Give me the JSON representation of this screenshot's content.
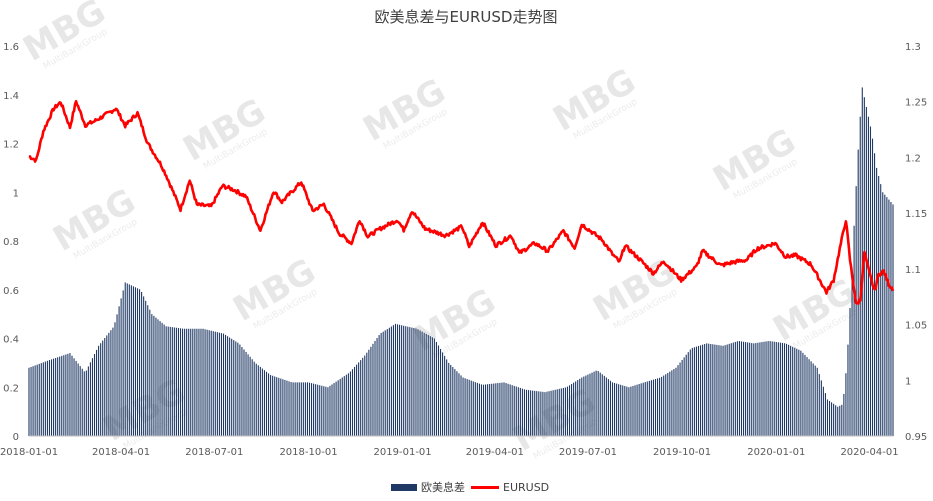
{
  "chart_data": {
    "type": "bar+line",
    "title": "欧美息差与EURUSD走势图",
    "watermark": "MBG",
    "watermark_sub": "MultiBankGroup",
    "x_tick_labels": [
      "2018-01-01",
      "2018-04-01",
      "2018-07-01",
      "2018-10-01",
      "2019-01-01",
      "2019-04-01",
      "2019-07-01",
      "2019-10-01",
      "2020-01-01",
      "2020-04-01"
    ],
    "x_range": [
      "2018-01-01",
      "2020-04-24"
    ],
    "y_left": {
      "min": 0,
      "max": 1.6,
      "ticks": [
        "0",
        "0.2",
        "0.4",
        "0.6",
        "0.8",
        "1",
        "1.2",
        "1.4",
        "1.6"
      ]
    },
    "y_right": {
      "min": 0.95,
      "max": 1.3,
      "ticks": [
        "0.95",
        "1",
        "1.05",
        "1.1",
        "1.15",
        "1.2",
        "1.25",
        "1.3"
      ]
    },
    "grid": false,
    "legend_position": "bottom",
    "series": [
      {
        "name": "欧美息差",
        "kind": "bar",
        "axis": "left",
        "color": "#1f3864",
        "anchors": [
          [
            "2018-01-01",
            0.28
          ],
          [
            "2018-01-20",
            0.31
          ],
          [
            "2018-02-10",
            0.34
          ],
          [
            "2018-02-25",
            0.26
          ],
          [
            "2018-03-10",
            0.37
          ],
          [
            "2018-03-25",
            0.45
          ],
          [
            "2018-04-05",
            0.63
          ],
          [
            "2018-04-20",
            0.6
          ],
          [
            "2018-05-01",
            0.5
          ],
          [
            "2018-05-15",
            0.45
          ],
          [
            "2018-06-01",
            0.44
          ],
          [
            "2018-06-20",
            0.44
          ],
          [
            "2018-07-10",
            0.42
          ],
          [
            "2018-07-25",
            0.38
          ],
          [
            "2018-08-10",
            0.3
          ],
          [
            "2018-08-25",
            0.25
          ],
          [
            "2018-09-15",
            0.22
          ],
          [
            "2018-10-01",
            0.22
          ],
          [
            "2018-10-20",
            0.2
          ],
          [
            "2018-11-10",
            0.26
          ],
          [
            "2018-11-25",
            0.33
          ],
          [
            "2018-12-10",
            0.42
          ],
          [
            "2018-12-25",
            0.46
          ],
          [
            "2019-01-15",
            0.44
          ],
          [
            "2019-02-01",
            0.4
          ],
          [
            "2019-02-15",
            0.3
          ],
          [
            "2019-03-01",
            0.24
          ],
          [
            "2019-03-20",
            0.21
          ],
          [
            "2019-04-10",
            0.22
          ],
          [
            "2019-05-01",
            0.19
          ],
          [
            "2019-05-20",
            0.18
          ],
          [
            "2019-06-10",
            0.2
          ],
          [
            "2019-06-25",
            0.24
          ],
          [
            "2019-07-10",
            0.27
          ],
          [
            "2019-07-25",
            0.22
          ],
          [
            "2019-08-10",
            0.2
          ],
          [
            "2019-08-25",
            0.22
          ],
          [
            "2019-09-10",
            0.24
          ],
          [
            "2019-09-25",
            0.28
          ],
          [
            "2019-10-10",
            0.36
          ],
          [
            "2019-10-25",
            0.38
          ],
          [
            "2019-11-10",
            0.37
          ],
          [
            "2019-11-25",
            0.39
          ],
          [
            "2019-12-10",
            0.38
          ],
          [
            "2019-12-25",
            0.39
          ],
          [
            "2020-01-10",
            0.38
          ],
          [
            "2020-01-25",
            0.35
          ],
          [
            "2020-02-10",
            0.28
          ],
          [
            "2020-02-20",
            0.15
          ],
          [
            "2020-03-01",
            0.12
          ],
          [
            "2020-03-06",
            0.13
          ],
          [
            "2020-03-10",
            0.3
          ],
          [
            "2020-03-14",
            0.6
          ],
          [
            "2020-03-18",
            0.95
          ],
          [
            "2020-03-22",
            1.25
          ],
          [
            "2020-03-25",
            1.43
          ],
          [
            "2020-03-29",
            1.35
          ],
          [
            "2020-04-03",
            1.25
          ],
          [
            "2020-04-08",
            1.1
          ],
          [
            "2020-04-14",
            1.0
          ],
          [
            "2020-04-24",
            0.95
          ]
        ]
      },
      {
        "name": "EURUSD",
        "kind": "line",
        "axis": "right",
        "color": "#ff0000",
        "anchors": [
          [
            "2018-01-01",
            1.2012
          ],
          [
            "2018-01-08",
            1.1972
          ],
          [
            "2018-01-15",
            1.2236
          ],
          [
            "2018-01-25",
            1.2436
          ],
          [
            "2018-02-01",
            1.2497
          ],
          [
            "2018-02-10",
            1.227
          ],
          [
            "2018-02-16",
            1.2505
          ],
          [
            "2018-02-25",
            1.229
          ],
          [
            "2018-03-05",
            1.232
          ],
          [
            "2018-03-20",
            1.24
          ],
          [
            "2018-03-27",
            1.244
          ],
          [
            "2018-04-05",
            1.2285
          ],
          [
            "2018-04-17",
            1.2398
          ],
          [
            "2018-04-27",
            1.2127
          ],
          [
            "2018-05-10",
            1.1935
          ],
          [
            "2018-05-15",
            1.184
          ],
          [
            "2018-05-29",
            1.1535
          ],
          [
            "2018-06-07",
            1.1795
          ],
          [
            "2018-06-14",
            1.1575
          ],
          [
            "2018-06-28",
            1.156
          ],
          [
            "2018-07-09",
            1.1745
          ],
          [
            "2018-07-20",
            1.171
          ],
          [
            "2018-08-01",
            1.165
          ],
          [
            "2018-08-15",
            1.1345
          ],
          [
            "2018-08-28",
            1.17
          ],
          [
            "2018-09-05",
            1.16
          ],
          [
            "2018-09-24",
            1.178
          ],
          [
            "2018-10-05",
            1.152
          ],
          [
            "2018-10-16",
            1.158
          ],
          [
            "2018-10-31",
            1.132
          ],
          [
            "2018-11-12",
            1.123
          ],
          [
            "2018-11-20",
            1.144
          ],
          [
            "2018-11-28",
            1.129
          ],
          [
            "2018-12-10",
            1.136
          ],
          [
            "2018-12-27",
            1.144
          ],
          [
            "2019-01-02",
            1.135
          ],
          [
            "2019-01-10",
            1.152
          ],
          [
            "2019-01-23",
            1.136
          ],
          [
            "2019-02-12",
            1.13
          ],
          [
            "2019-02-28",
            1.138
          ],
          [
            "2019-03-07",
            1.12
          ],
          [
            "2019-03-20",
            1.142
          ],
          [
            "2019-04-02",
            1.121
          ],
          [
            "2019-04-17",
            1.13
          ],
          [
            "2019-04-25",
            1.114
          ],
          [
            "2019-05-10",
            1.123
          ],
          [
            "2019-05-23",
            1.116
          ],
          [
            "2019-06-07",
            1.134
          ],
          [
            "2019-06-18",
            1.119
          ],
          [
            "2019-06-25",
            1.14
          ],
          [
            "2019-07-15",
            1.126
          ],
          [
            "2019-07-25",
            1.113
          ],
          [
            "2019-08-01",
            1.106
          ],
          [
            "2019-08-06",
            1.121
          ],
          [
            "2019-08-20",
            1.109
          ],
          [
            "2019-09-03",
            1.096
          ],
          [
            "2019-09-13",
            1.107
          ],
          [
            "2019-09-30",
            1.09
          ],
          [
            "2019-10-15",
            1.102
          ],
          [
            "2019-10-21",
            1.116
          ],
          [
            "2019-11-08",
            1.103
          ],
          [
            "2019-11-20",
            1.106
          ],
          [
            "2019-12-03",
            1.108
          ],
          [
            "2019-12-13",
            1.118
          ],
          [
            "2019-12-31",
            1.123
          ],
          [
            "2020-01-10",
            1.111
          ],
          [
            "2020-01-20",
            1.112
          ],
          [
            "2020-02-04",
            1.104
          ],
          [
            "2020-02-19",
            1.079
          ],
          [
            "2020-02-26",
            1.09
          ],
          [
            "2020-03-03",
            1.118
          ],
          [
            "2020-03-09",
            1.144
          ],
          [
            "2020-03-13",
            1.108
          ],
          [
            "2020-03-19",
            1.068
          ],
          [
            "2020-03-23",
            1.072
          ],
          [
            "2020-03-27",
            1.115
          ],
          [
            "2020-04-01",
            1.096
          ],
          [
            "2020-04-06",
            1.08
          ],
          [
            "2020-04-10",
            1.095
          ],
          [
            "2020-04-15",
            1.098
          ],
          [
            "2020-04-20",
            1.086
          ],
          [
            "2020-04-24",
            1.082
          ]
        ]
      }
    ]
  }
}
